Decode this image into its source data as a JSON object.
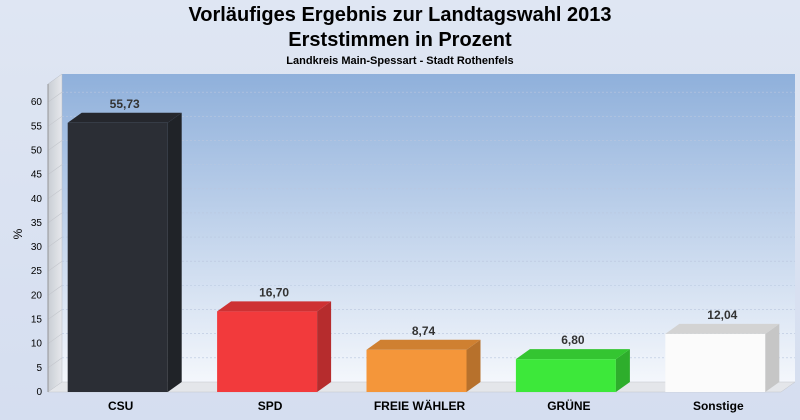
{
  "title": "Vorläufiges Ergebnis zur Landtagswahl 2013",
  "subtitle": "Erststimmen in Prozent",
  "region": "Landkreis Main-Spessart - Stadt Rothenfels",
  "chart_data": {
    "type": "bar",
    "title": "Vorläufiges Ergebnis zur Landtagswahl 2013",
    "subtitle": "Erststimmen in Prozent",
    "ylabel": "%",
    "xlabel": "",
    "ylim": [
      0,
      65
    ],
    "yticks": [
      0,
      5,
      10,
      15,
      20,
      25,
      30,
      35,
      40,
      45,
      50,
      55,
      60
    ],
    "grid": true,
    "categories": [
      "CSU",
      "SPD",
      "FREIE WÄHLER",
      "GRÜNE",
      "Sonstige"
    ],
    "values": [
      55.73,
      16.7,
      8.74,
      6.8,
      12.04
    ],
    "value_labels": [
      "55,73",
      "16,70",
      "8,74",
      "6,80",
      "12,04"
    ],
    "colors": [
      "#2b2e35",
      "#f23a3c",
      "#f4963a",
      "#3de83a",
      "#fbfbfb"
    ]
  }
}
